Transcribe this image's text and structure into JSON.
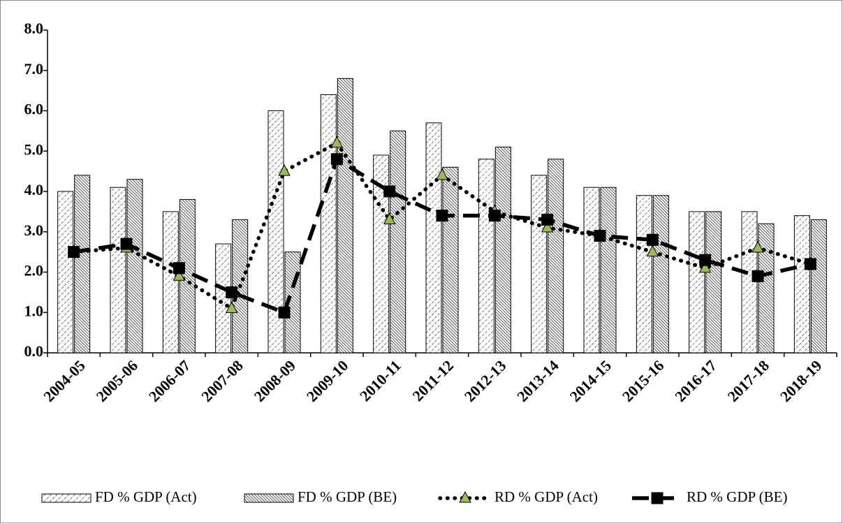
{
  "chart_data": {
    "type": "bar",
    "categories": [
      "2004-05",
      "2005-06",
      "2006-07",
      "2007-08",
      "2008-09",
      "2009-10",
      "2010-11",
      "2011-12",
      "2012-13",
      "2013-14",
      "2014-15",
      "2015-16",
      "2016-17",
      "2017-18",
      "2018-19"
    ],
    "series": [
      {
        "name": "FD % GDP (Act)",
        "type": "bar",
        "color": "#000000",
        "pattern": "dots",
        "values": [
          4.0,
          4.1,
          3.5,
          2.7,
          6.0,
          6.4,
          4.9,
          5.7,
          4.8,
          4.4,
          4.1,
          3.9,
          3.5,
          3.5,
          3.4
        ]
      },
      {
        "name": "FD % GDP (BE)",
        "type": "bar",
        "color": "#000000",
        "pattern": "hatch",
        "values": [
          4.4,
          4.3,
          3.8,
          3.3,
          2.5,
          6.8,
          5.5,
          4.6,
          5.1,
          4.8,
          4.1,
          3.9,
          3.5,
          3.2,
          3.3
        ]
      },
      {
        "name": "RD % GDP (Act)",
        "type": "line",
        "color": "#000000",
        "style": "dotted",
        "marker": "triangle",
        "marker_color": "#9bbb59",
        "values": [
          2.5,
          2.6,
          1.9,
          1.1,
          4.5,
          5.2,
          3.3,
          4.4,
          3.5,
          3.1,
          2.9,
          2.5,
          2.1,
          2.6,
          2.2
        ]
      },
      {
        "name": "RD % GDP (BE)",
        "type": "line",
        "color": "#000000",
        "style": "dashed",
        "marker": "square",
        "marker_color": "#000000",
        "values": [
          2.5,
          2.7,
          2.1,
          1.5,
          1.0,
          4.8,
          4.0,
          3.4,
          3.4,
          3.3,
          2.9,
          2.8,
          2.3,
          1.9,
          2.2
        ]
      }
    ],
    "ylim": [
      0,
      8
    ],
    "yticks": [
      {
        "value": 0,
        "label": "0.0"
      },
      {
        "value": 1,
        "label": "1.0"
      },
      {
        "value": 2,
        "label": "2.0"
      },
      {
        "value": 3,
        "label": "3.0"
      },
      {
        "value": 4,
        "label": "4.0"
      },
      {
        "value": 5,
        "label": "5.0"
      },
      {
        "value": 6,
        "label": "6.0"
      },
      {
        "value": 7,
        "label": "7.0"
      },
      {
        "value": 8,
        "label": "8.0"
      }
    ],
    "grid": false,
    "legend": "bottom"
  }
}
